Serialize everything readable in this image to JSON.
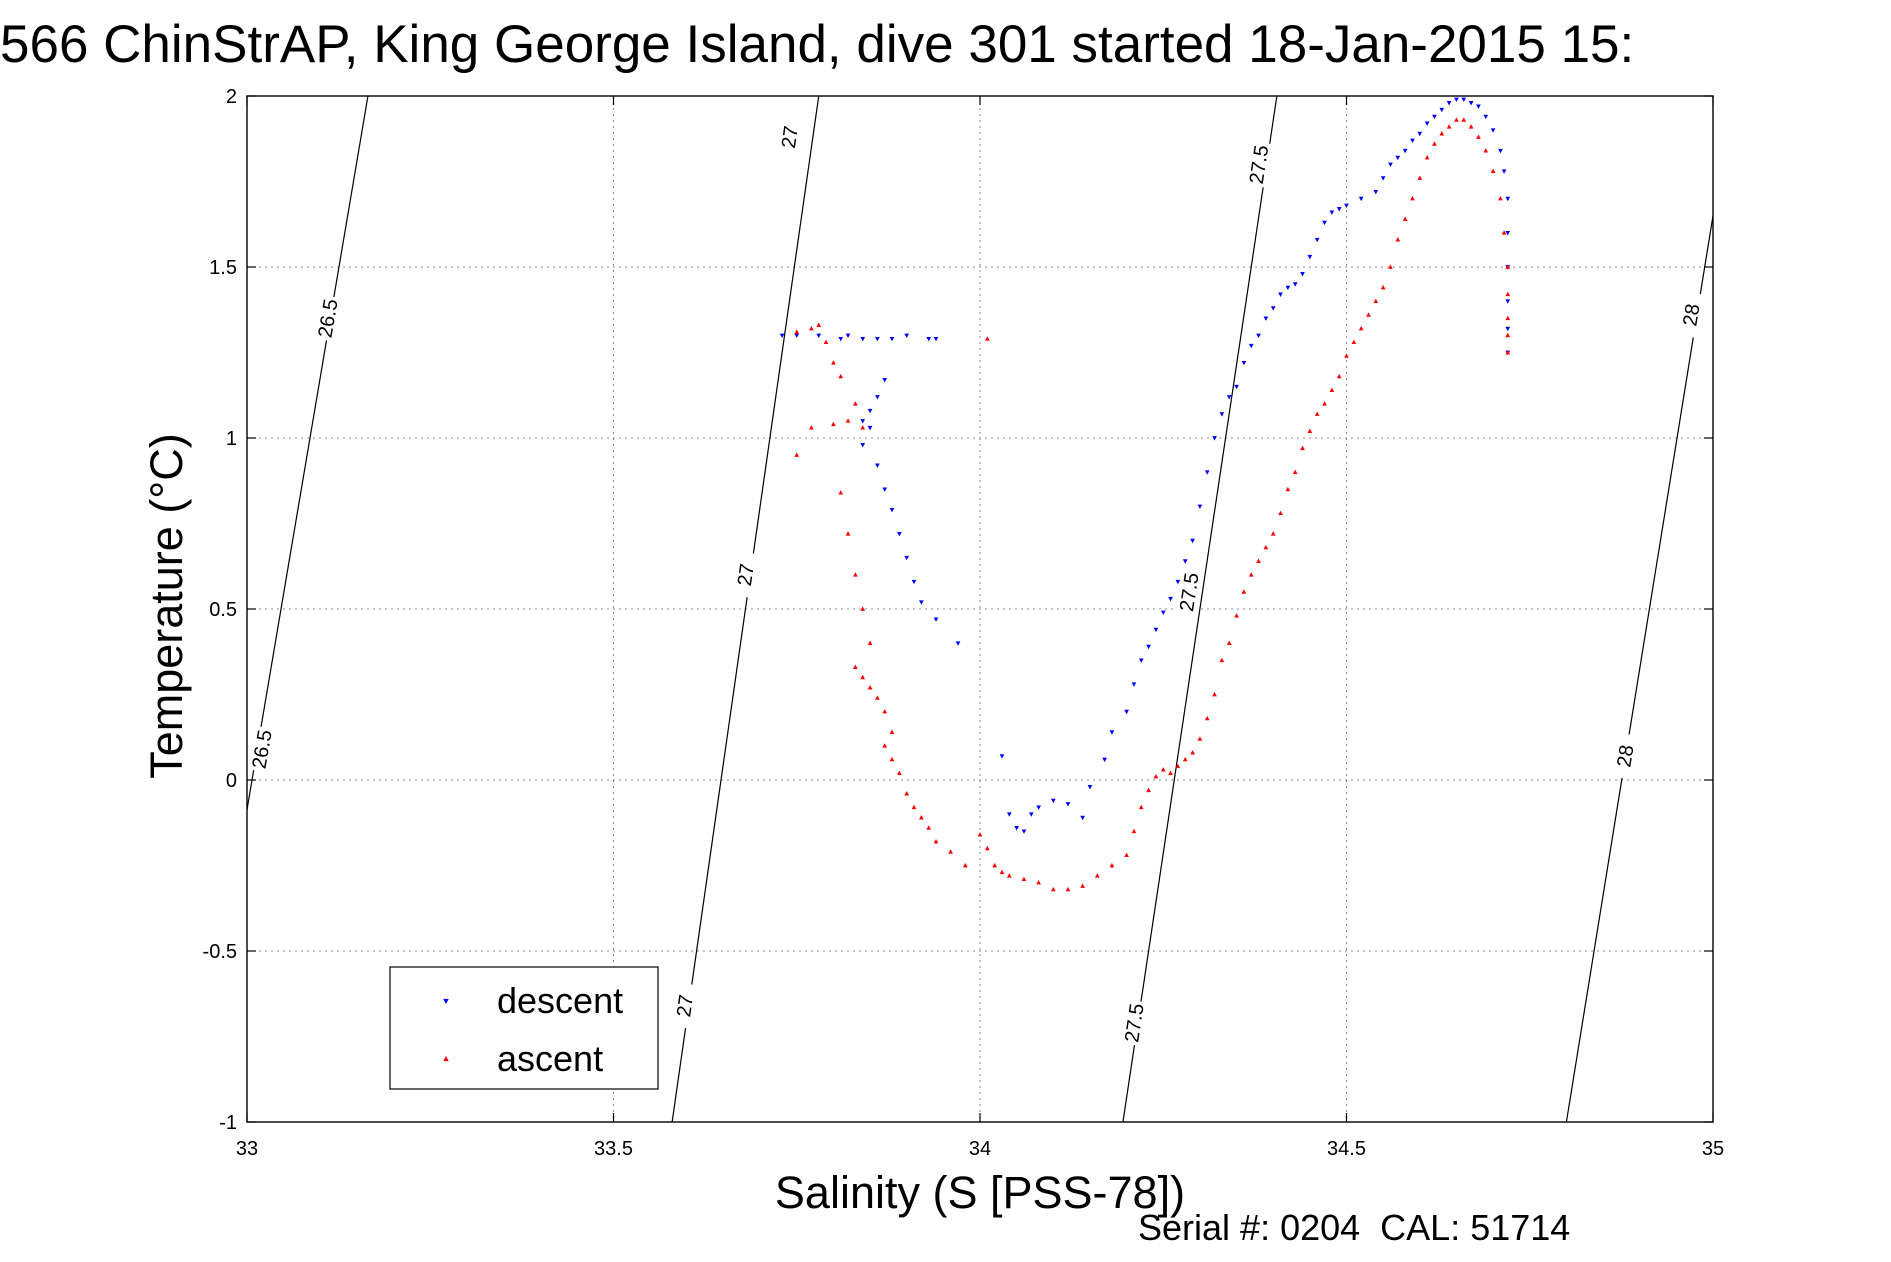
{
  "chart_data": {
    "type": "scatter",
    "title": "566 ChinStrAP, King George Island, dive 301 started 18-Jan-2015 15:",
    "xlabel": "Salinity (S [PSS-78])",
    "ylabel": "Temperature (°C)",
    "xlim": [
      33,
      35
    ],
    "ylim": [
      -1,
      2
    ],
    "xticks": [
      33,
      33.5,
      34,
      34.5,
      35
    ],
    "xtick_labels": [
      "33",
      "33.5",
      "34",
      "34.5",
      "35"
    ],
    "yticks": [
      -1,
      -0.5,
      0,
      0.5,
      1,
      1.5,
      2
    ],
    "ytick_labels": [
      "-1",
      "-0.5",
      "0",
      "0.5",
      "1",
      "1.5",
      "2"
    ],
    "grid": true,
    "legend_position": "bottom-left",
    "footer": "Serial #: 0204  CAL: 51714",
    "density_contours": [
      {
        "level": "26.5",
        "points": [
          [
            32.995,
            -0.15
          ],
          [
            33.165,
            2.0
          ]
        ],
        "labels": [
          {
            "x": 33.11,
            "y": 1.35
          },
          {
            "x": 33.02,
            "y": 0.09
          }
        ]
      },
      {
        "level": "27",
        "points": [
          [
            33.58,
            -1.0
          ],
          [
            33.78,
            2.0
          ]
        ],
        "labels": [
          {
            "x": 33.74,
            "y": 1.88
          },
          {
            "x": 33.68,
            "y": 0.6
          },
          {
            "x": 33.597,
            "y": -0.66
          }
        ]
      },
      {
        "level": "27.5",
        "points": [
          [
            34.195,
            -1.0
          ],
          [
            34.405,
            2.0
          ]
        ],
        "labels": [
          {
            "x": 34.38,
            "y": 1.8
          },
          {
            "x": 34.285,
            "y": 0.55
          },
          {
            "x": 34.21,
            "y": -0.71
          }
        ]
      },
      {
        "level": "28",
        "points": [
          [
            34.8,
            -1.0
          ],
          [
            35.0,
            1.65
          ]
        ],
        "labels": [
          {
            "x": 34.97,
            "y": 1.36
          },
          {
            "x": 34.88,
            "y": 0.07
          }
        ]
      }
    ],
    "series": [
      {
        "name": "descent",
        "color": "#0000ff",
        "marker": "triangle-down",
        "x": [
          33.73,
          33.75,
          33.78,
          33.81,
          33.82,
          33.84,
          33.86,
          33.88,
          33.9,
          33.93,
          33.94,
          33.84,
          33.85,
          33.86,
          33.87,
          33.85,
          33.84,
          33.86,
          33.87,
          33.88,
          33.89,
          33.9,
          33.91,
          33.92,
          33.94,
          33.97,
          34.03,
          34.04,
          34.05,
          34.06,
          34.07,
          34.08,
          34.1,
          34.12,
          34.14,
          34.15,
          34.17,
          34.18,
          34.2,
          34.21,
          34.22,
          34.23,
          34.24,
          34.25,
          34.26,
          34.27,
          34.28,
          34.29,
          34.3,
          34.31,
          34.32,
          34.33,
          34.34,
          34.35,
          34.36,
          34.37,
          34.38,
          34.39,
          34.4,
          34.41,
          34.42,
          34.43,
          34.44,
          34.45,
          34.46,
          34.47,
          34.48,
          34.49,
          34.5,
          34.52,
          34.54,
          34.55,
          34.56,
          34.57,
          34.58,
          34.59,
          34.6,
          34.61,
          34.62,
          34.63,
          34.64,
          34.65,
          34.66,
          34.67,
          34.68,
          34.69,
          34.7,
          34.71,
          34.715,
          34.72,
          34.72,
          34.72,
          34.72,
          34.72,
          34.72
        ],
        "y": [
          1.3,
          1.3,
          1.3,
          1.29,
          1.3,
          1.29,
          1.29,
          1.29,
          1.3,
          1.29,
          1.29,
          1.05,
          1.08,
          1.12,
          1.17,
          1.03,
          0.98,
          0.92,
          0.85,
          0.79,
          0.72,
          0.65,
          0.58,
          0.52,
          0.47,
          0.4,
          0.07,
          -0.1,
          -0.14,
          -0.15,
          -0.1,
          -0.08,
          -0.06,
          -0.07,
          -0.11,
          -0.02,
          0.06,
          0.14,
          0.2,
          0.28,
          0.35,
          0.39,
          0.44,
          0.49,
          0.53,
          0.58,
          0.64,
          0.7,
          0.8,
          0.9,
          1.0,
          1.07,
          1.12,
          1.15,
          1.22,
          1.27,
          1.3,
          1.35,
          1.38,
          1.42,
          1.44,
          1.45,
          1.48,
          1.53,
          1.58,
          1.63,
          1.66,
          1.67,
          1.68,
          1.7,
          1.72,
          1.76,
          1.8,
          1.82,
          1.84,
          1.87,
          1.89,
          1.92,
          1.94,
          1.96,
          1.98,
          1.99,
          1.99,
          1.98,
          1.97,
          1.94,
          1.9,
          1.84,
          1.78,
          1.7,
          1.6,
          1.5,
          1.4,
          1.32,
          1.25
        ]
      },
      {
        "name": "ascent",
        "color": "#ff0000",
        "marker": "triangle-up",
        "x": [
          33.75,
          33.77,
          33.78,
          33.79,
          33.8,
          33.81,
          33.83,
          33.77,
          33.8,
          33.82,
          33.84,
          33.75,
          33.81,
          33.82,
          33.83,
          33.84,
          33.85,
          33.83,
          33.84,
          33.85,
          33.86,
          33.87,
          33.88,
          33.87,
          33.88,
          33.89,
          33.9,
          33.91,
          33.92,
          33.93,
          33.94,
          33.96,
          33.98,
          34.0,
          34.01,
          34.02,
          34.03,
          34.04,
          34.06,
          34.08,
          34.1,
          34.12,
          34.14,
          34.16,
          34.18,
          34.2,
          34.21,
          34.22,
          34.23,
          34.24,
          34.25,
          34.26,
          34.27,
          34.28,
          34.29,
          34.3,
          34.31,
          34.32,
          34.33,
          34.34,
          34.35,
          34.36,
          34.37,
          34.38,
          34.39,
          34.4,
          34.41,
          34.42,
          34.43,
          34.44,
          34.45,
          34.46,
          34.47,
          34.48,
          34.49,
          34.5,
          34.51,
          34.52,
          34.53,
          34.54,
          34.55,
          34.56,
          34.57,
          34.58,
          34.59,
          34.6,
          34.61,
          34.62,
          34.63,
          34.64,
          34.65,
          34.66,
          34.67,
          34.68,
          34.69,
          34.7,
          34.71,
          34.715,
          34.72,
          34.72,
          34.72,
          34.72,
          34.72,
          34.01
        ],
        "y": [
          1.31,
          1.32,
          1.33,
          1.28,
          1.22,
          1.18,
          1.1,
          1.03,
          1.04,
          1.05,
          1.03,
          0.95,
          0.84,
          0.72,
          0.6,
          0.5,
          0.4,
          0.33,
          0.3,
          0.27,
          0.24,
          0.2,
          0.14,
          0.1,
          0.06,
          0.02,
          -0.04,
          -0.08,
          -0.11,
          -0.14,
          -0.18,
          -0.21,
          -0.25,
          -0.16,
          -0.2,
          -0.25,
          -0.27,
          -0.28,
          -0.29,
          -0.3,
          -0.32,
          -0.32,
          -0.31,
          -0.28,
          -0.25,
          -0.22,
          -0.15,
          -0.08,
          -0.03,
          0.01,
          0.03,
          0.02,
          0.04,
          0.06,
          0.08,
          0.12,
          0.18,
          0.25,
          0.35,
          0.4,
          0.48,
          0.55,
          0.6,
          0.64,
          0.68,
          0.72,
          0.78,
          0.85,
          0.9,
          0.97,
          1.02,
          1.07,
          1.1,
          1.14,
          1.18,
          1.24,
          1.28,
          1.32,
          1.36,
          1.4,
          1.44,
          1.5,
          1.58,
          1.64,
          1.7,
          1.76,
          1.82,
          1.86,
          1.89,
          1.91,
          1.93,
          1.93,
          1.91,
          1.88,
          1.84,
          1.78,
          1.7,
          1.6,
          1.5,
          1.42,
          1.35,
          1.3,
          1.25,
          1.29
        ]
      }
    ]
  }
}
